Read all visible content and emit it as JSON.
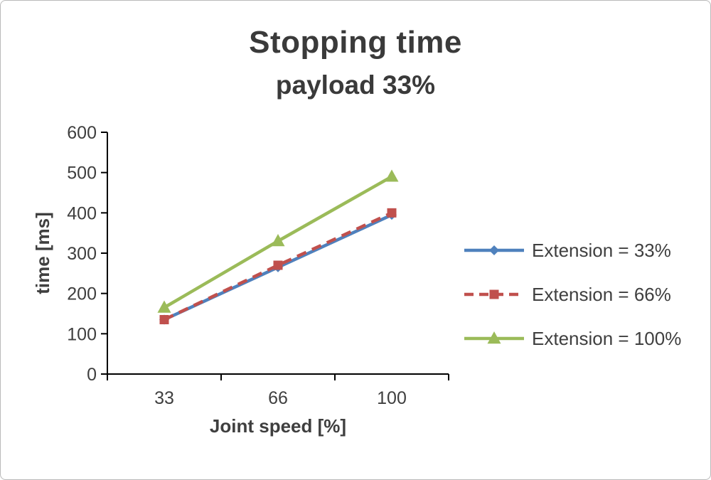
{
  "chart": {
    "title": "Stopping time",
    "subtitle": "payload 33%"
  },
  "chart_data": {
    "type": "line",
    "title": "Stopping time",
    "subtitle": "payload 33%",
    "categories": [
      "33",
      "66",
      "100"
    ],
    "series": [
      {
        "name": "Extension = 33%",
        "values": [
          135,
          265,
          395
        ],
        "color": "#4F81BD",
        "marker": "diamond",
        "dash": "solid"
      },
      {
        "name": "Extension = 66%",
        "values": [
          135,
          270,
          400
        ],
        "color": "#C0504D",
        "marker": "square",
        "dash": "dashed"
      },
      {
        "name": "Extension = 100%",
        "values": [
          165,
          330,
          490
        ],
        "color": "#9BBB59",
        "marker": "triangle",
        "dash": "solid"
      }
    ],
    "xlabel": "Joint speed [%]",
    "ylabel": "time [ms]",
    "ylim": [
      0,
      600
    ],
    "ytick_step": 100,
    "grid": false,
    "legend_position": "right",
    "axis_color": "#000000",
    "text_color": "#3f3f3f"
  }
}
